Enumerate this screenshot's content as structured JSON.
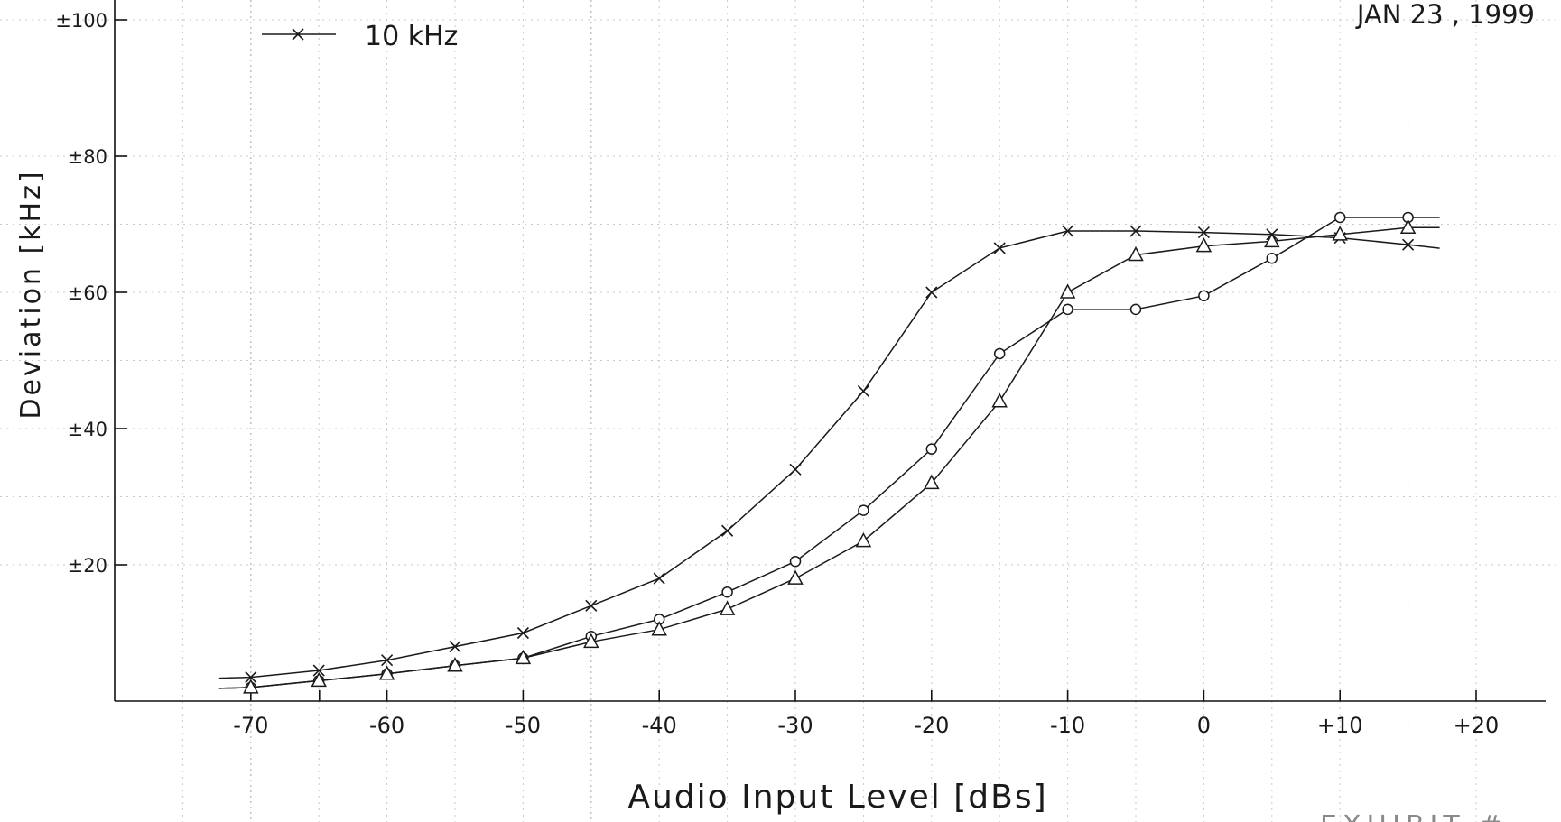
{
  "header": {
    "date_text": "JAN 23 , 1999"
  },
  "legend": {
    "label": "10 kHz"
  },
  "footer": {
    "stamp_text": "EXHIBIT #"
  },
  "chart_data": {
    "type": "line",
    "title": "",
    "xlabel": "Audio Input Level [dBs]",
    "ylabel": "Deviation [kHz]",
    "xlim": [
      -80,
      20
    ],
    "ylim": [
      0,
      100
    ],
    "x_ticks": [
      -70,
      -60,
      -50,
      -40,
      -30,
      -20,
      -10,
      0,
      10,
      20
    ],
    "x_tick_labels": [
      "-70",
      "-60",
      "-50",
      "-40",
      "-30",
      "-20",
      "-10",
      "0",
      "+10",
      "+20"
    ],
    "y_ticks": [
      20,
      40,
      60,
      80,
      100
    ],
    "y_tick_labels": [
      "±20",
      "±40",
      "±60",
      "±80",
      "±100"
    ],
    "grid": true,
    "legend_position": "top-left",
    "series": [
      {
        "name": "10 kHz",
        "marker": "x",
        "x": [
          -70,
          -65,
          -60,
          -55,
          -50,
          -45,
          -40,
          -35,
          -30,
          -25,
          -20,
          -15,
          -10,
          -5,
          0,
          5,
          10,
          15
        ],
        "values": [
          3.5,
          4.5,
          6,
          8,
          10,
          14,
          18,
          25,
          34,
          45.5,
          60,
          66.5,
          69,
          69,
          68.8,
          68.5,
          68,
          67
        ]
      },
      {
        "name": "",
        "marker": "circle",
        "x": [
          -70,
          -65,
          -60,
          -55,
          -50,
          -45,
          -40,
          -35,
          -30,
          -25,
          -20,
          -15,
          -10,
          -5,
          0,
          5,
          10,
          15
        ],
        "values": [
          2,
          3,
          4,
          5.2,
          6.3,
          9.5,
          12,
          16,
          20.5,
          28,
          37,
          51,
          57.5,
          57.5,
          59.5,
          65,
          71,
          71
        ]
      },
      {
        "name": "",
        "marker": "triangle",
        "x": [
          -70,
          -65,
          -60,
          -55,
          -50,
          -45,
          -40,
          -35,
          -30,
          -25,
          -20,
          -15,
          -10,
          -5,
          0,
          5,
          10,
          15
        ],
        "values": [
          2,
          3,
          4,
          5.2,
          6.3,
          8.7,
          10.5,
          13.5,
          18,
          23.5,
          32,
          44,
          60,
          65.5,
          66.8,
          67.5,
          68.5,
          69.5
        ]
      }
    ]
  }
}
